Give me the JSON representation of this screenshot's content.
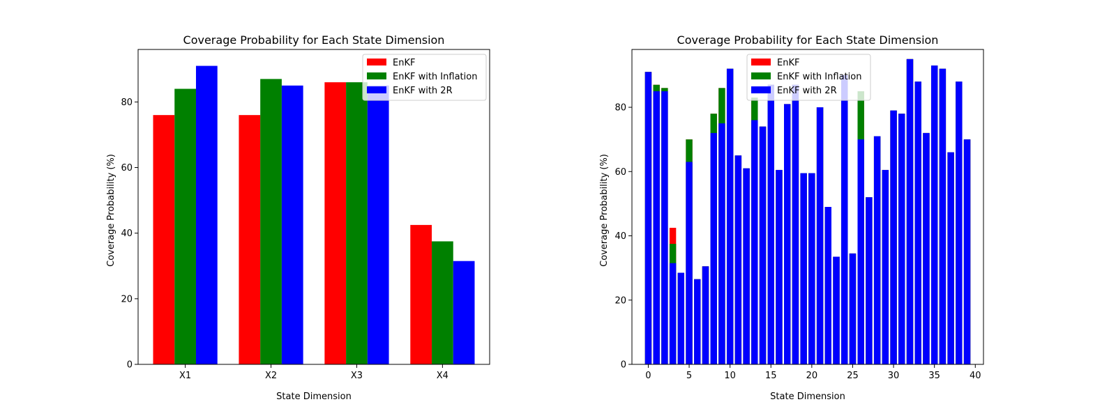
{
  "chart_data": [
    {
      "type": "bar",
      "title": "Coverage Probability for Each State Dimension",
      "xlabel": "State Dimension",
      "ylabel": "Coverage Probability (%)",
      "categories": [
        "X1",
        "X2",
        "X3",
        "X4"
      ],
      "ylim": [
        0,
        96
      ],
      "yticks": [
        0,
        20,
        40,
        60,
        80
      ],
      "grouping": "grouped",
      "legend": "top-right",
      "grid": false,
      "series": [
        {
          "name": "EnKF",
          "color": "#ff0000",
          "values": [
            76,
            76,
            86,
            42.5
          ]
        },
        {
          "name": "EnKF with Inflation",
          "color": "#008000",
          "values": [
            84,
            87,
            86,
            37.5
          ]
        },
        {
          "name": "EnKF with 2R",
          "color": "#0000ff",
          "values": [
            91,
            85,
            85,
            31.5
          ]
        }
      ]
    },
    {
      "type": "bar",
      "title": "Coverage Probability for Each State Dimension",
      "xlabel": "State Dimension",
      "ylabel": "Coverage Probability (%)",
      "x": [
        0,
        1,
        2,
        3,
        4,
        5,
        6,
        7,
        8,
        9,
        10,
        11,
        12,
        13,
        14,
        15,
        16,
        17,
        18,
        19,
        20,
        21,
        22,
        23,
        24,
        25,
        26,
        27,
        28,
        29,
        30,
        31,
        32,
        33,
        34,
        35,
        36,
        37,
        38,
        39
      ],
      "xlim": [
        -2,
        41
      ],
      "xticks": [
        0,
        5,
        10,
        15,
        20,
        25,
        30,
        35,
        40
      ],
      "ylim": [
        0,
        98
      ],
      "yticks": [
        0,
        20,
        40,
        60,
        80
      ],
      "grouping": "overlaid",
      "legend": "top-center",
      "grid": false,
      "series": [
        {
          "name": "EnKF",
          "color": "#ff0000",
          "values": [
            91,
            87,
            86,
            42.5,
            28.5,
            70,
            26.5,
            30.5,
            78,
            86,
            92,
            65,
            61,
            83,
            74,
            87,
            60.5,
            81,
            87,
            59.5,
            59.5,
            80,
            49,
            33.5,
            90,
            34.5,
            85,
            52,
            71,
            60.5,
            79,
            78,
            95,
            88,
            72,
            93,
            92,
            66,
            88,
            70
          ]
        },
        {
          "name": "EnKF with Inflation",
          "color": "#008000",
          "values": [
            91,
            87,
            86,
            37.5,
            28.5,
            70,
            26.5,
            30.5,
            78,
            86,
            92,
            65,
            61,
            83,
            74,
            87,
            60.5,
            81,
            87,
            59.5,
            59.5,
            80,
            49,
            33.5,
            90,
            34.5,
            85,
            52,
            71,
            60.5,
            79,
            78,
            95,
            88,
            72,
            93,
            92,
            66,
            88,
            70
          ]
        },
        {
          "name": "EnKF with 2R",
          "color": "#0000ff",
          "values": [
            91,
            85,
            85,
            31.5,
            28.5,
            63,
            26.5,
            30.5,
            72,
            75,
            92,
            65,
            61,
            76,
            74,
            87,
            60.5,
            81,
            87,
            59.5,
            59.5,
            80,
            49,
            33.5,
            90,
            34.5,
            70,
            52,
            71,
            60.5,
            79,
            78,
            95,
            88,
            72,
            93,
            92,
            66,
            88,
            70
          ]
        }
      ]
    }
  ]
}
